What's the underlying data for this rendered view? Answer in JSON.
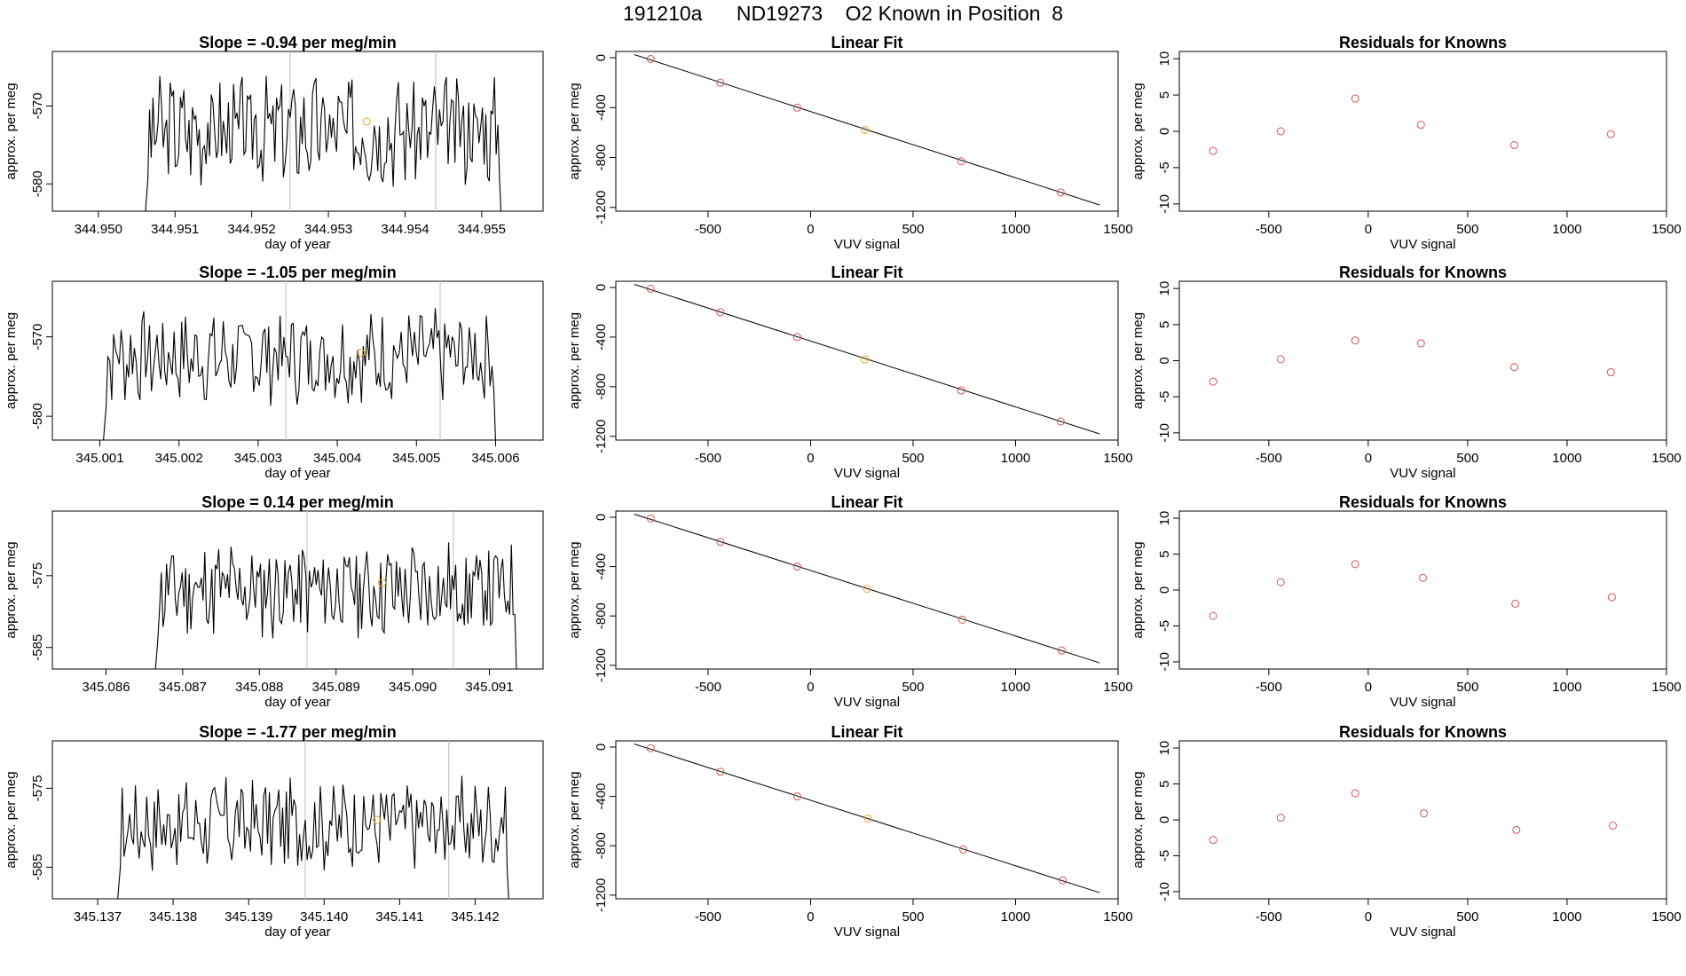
{
  "header": {
    "run_id": "191210a",
    "tank_id": "ND19273",
    "known_label": "O2 Known in Position",
    "position": "8"
  },
  "colors": {
    "line": "#000000",
    "known_point": "#d9534f",
    "highlight_point": "#f0a020",
    "vline": "#c8c8c8"
  },
  "chart_data": [
    {
      "type": "line",
      "panel": "time-series",
      "title": "Slope =  -0.94  per meg/min",
      "xlabel": "day of year",
      "ylabel": "approx. per meg",
      "xlim": [
        344.9494,
        344.9558
      ],
      "ylim": [
        -583.5,
        -563
      ],
      "xticks": [
        "344.950",
        "344.951",
        "344.952",
        "344.953",
        "344.954",
        "344.955"
      ],
      "xtick_values": [
        344.95,
        344.951,
        344.952,
        344.953,
        344.954,
        344.955
      ],
      "yticks": [
        "-570",
        "-580"
      ],
      "ytick_values": [
        -570,
        -580
      ],
      "vlines": [
        344.9525,
        344.9544
      ],
      "marker": {
        "x": 344.9535,
        "y": -572
      },
      "start": 344.9506,
      "end": 344.9553,
      "center": -573,
      "amp": 6,
      "seed": 3
    },
    {
      "type": "scatter",
      "panel": "linear-fit",
      "title": "Linear Fit",
      "xlabel": "VUV signal",
      "ylabel": "approx. per meg",
      "xlim": [
        -950,
        1500
      ],
      "ylim": [
        -1230,
        50
      ],
      "xticks": [
        "-500",
        "0",
        "500",
        "1000",
        "1500"
      ],
      "xtick_values": [
        -500,
        0,
        500,
        1000,
        1500
      ],
      "yticks": [
        "0",
        "-400",
        "-800",
        "-1200"
      ],
      "ytick_values": [
        0,
        -400,
        -800,
        -1200
      ],
      "fit_line": [
        [
          -860,
          25
        ],
        [
          1410,
          -1180
        ]
      ],
      "points": [
        {
          "x": -780,
          "y": -10
        },
        {
          "x": -440,
          "y": -200
        },
        {
          "x": -65,
          "y": -400
        },
        {
          "x": 265,
          "y": -580
        },
        {
          "x": 735,
          "y": -830
        },
        {
          "x": 1220,
          "y": -1080
        }
      ],
      "highlight_index": 3
    },
    {
      "type": "scatter",
      "panel": "residuals",
      "title": "Residuals for Knowns",
      "xlabel": "VUV signal",
      "ylabel": "approx. per meg",
      "xlim": [
        -950,
        1500
      ],
      "ylim": [
        -11,
        11
      ],
      "xticks": [
        "-500",
        "0",
        "500",
        "1000",
        "1500"
      ],
      "xtick_values": [
        -500,
        0,
        500,
        1000,
        1500
      ],
      "yticks": [
        "10",
        "5",
        "0",
        "-5",
        "-10"
      ],
      "ytick_values": [
        10,
        5,
        0,
        -5,
        -10
      ],
      "points": [
        {
          "x": -780,
          "y": -2.7
        },
        {
          "x": -440,
          "y": 0
        },
        {
          "x": -65,
          "y": 4.5
        },
        {
          "x": 265,
          "y": 0.9
        },
        {
          "x": 735,
          "y": -1.9
        },
        {
          "x": 1220,
          "y": -0.4
        }
      ]
    },
    {
      "type": "line",
      "panel": "time-series",
      "title": "Slope =  -1.05  per meg/min",
      "xlabel": "day of year",
      "ylabel": "approx. per meg",
      "xlim": [
        345.0004,
        345.0066
      ],
      "ylim": [
        -583,
        -563
      ],
      "xticks": [
        "345.001",
        "345.002",
        "345.003",
        "345.004",
        "345.005",
        "345.006"
      ],
      "xtick_values": [
        345.001,
        345.002,
        345.003,
        345.004,
        345.005,
        345.006
      ],
      "yticks": [
        "-570",
        "-580"
      ],
      "ytick_values": [
        -570,
        -580
      ],
      "vlines": [
        345.00335,
        345.0053
      ],
      "marker": {
        "x": 345.0043,
        "y": -572
      },
      "start": 345.00103,
      "end": 345.00605,
      "center": -572.5,
      "amp": 5,
      "seed": 7
    },
    {
      "type": "scatter",
      "panel": "linear-fit",
      "title": "Linear Fit",
      "xlabel": "VUV signal",
      "ylabel": "approx. per meg",
      "xlim": [
        -950,
        1500
      ],
      "ylim": [
        -1230,
        50
      ],
      "xticks": [
        "-500",
        "0",
        "500",
        "1000",
        "1500"
      ],
      "xtick_values": [
        -500,
        0,
        500,
        1000,
        1500
      ],
      "yticks": [
        "0",
        "-400",
        "-800",
        "-1200"
      ],
      "ytick_values": [
        0,
        -400,
        -800,
        -1200
      ],
      "fit_line": [
        [
          -860,
          25
        ],
        [
          1410,
          -1180
        ]
      ],
      "points": [
        {
          "x": -780,
          "y": -10
        },
        {
          "x": -440,
          "y": -200
        },
        {
          "x": -65,
          "y": -400
        },
        {
          "x": 265,
          "y": -580
        },
        {
          "x": 735,
          "y": -830
        },
        {
          "x": 1220,
          "y": -1080
        }
      ],
      "highlight_index": 3
    },
    {
      "type": "scatter",
      "panel": "residuals",
      "title": "Residuals for Knowns",
      "xlabel": "VUV signal",
      "ylabel": "approx. per meg",
      "xlim": [
        -950,
        1500
      ],
      "ylim": [
        -11,
        11
      ],
      "xticks": [
        "-500",
        "0",
        "500",
        "1000",
        "1500"
      ],
      "xtick_values": [
        -500,
        0,
        500,
        1000,
        1500
      ],
      "yticks": [
        "10",
        "5",
        "0",
        "-5",
        "-10"
      ],
      "ytick_values": [
        10,
        5,
        0,
        -5,
        -10
      ],
      "points": [
        {
          "x": -780,
          "y": -2.9
        },
        {
          "x": -440,
          "y": 0.2
        },
        {
          "x": -65,
          "y": 2.8
        },
        {
          "x": 265,
          "y": 2.4
        },
        {
          "x": 735,
          "y": -0.9
        },
        {
          "x": 1220,
          "y": -1.6
        }
      ]
    },
    {
      "type": "line",
      "panel": "time-series",
      "title": "Slope =  0.14  per meg/min",
      "xlabel": "day of year",
      "ylabel": "approx. per meg",
      "xlim": [
        345.0853,
        345.0917
      ],
      "ylim": [
        -588,
        -566
      ],
      "xticks": [
        "345.086",
        "345.087",
        "345.088",
        "345.089",
        "345.090",
        "345.091"
      ],
      "xtick_values": [
        345.086,
        345.087,
        345.088,
        345.089,
        345.09,
        345.091
      ],
      "yticks": [
        "-575",
        "-585"
      ],
      "ytick_values": [
        -575,
        -585
      ],
      "vlines": [
        345.08862,
        345.09053
      ],
      "marker": {
        "x": 345.0896,
        "y": -576
      },
      "start": 345.08663,
      "end": 345.0914,
      "center": -577,
      "amp": 6,
      "seed": 11
    },
    {
      "type": "scatter",
      "panel": "linear-fit",
      "title": "Linear Fit",
      "xlabel": "VUV signal",
      "ylabel": "approx. per meg",
      "xlim": [
        -950,
        1500
      ],
      "ylim": [
        -1230,
        50
      ],
      "xticks": [
        "-500",
        "0",
        "500",
        "1000",
        "1500"
      ],
      "xtick_values": [
        -500,
        0,
        500,
        1000,
        1500
      ],
      "yticks": [
        "0",
        "-400",
        "-800",
        "-1200"
      ],
      "ytick_values": [
        0,
        -400,
        -800,
        -1200
      ],
      "fit_line": [
        [
          -860,
          25
        ],
        [
          1410,
          -1180
        ]
      ],
      "points": [
        {
          "x": -780,
          "y": -10
        },
        {
          "x": -440,
          "y": -200
        },
        {
          "x": -65,
          "y": -400
        },
        {
          "x": 275,
          "y": -580
        },
        {
          "x": 740,
          "y": -830
        },
        {
          "x": 1225,
          "y": -1080
        }
      ],
      "highlight_index": 3
    },
    {
      "type": "scatter",
      "panel": "residuals",
      "title": "Residuals for Knowns",
      "xlabel": "VUV signal",
      "ylabel": "approx. per meg",
      "xlim": [
        -950,
        1500
      ],
      "ylim": [
        -11,
        11
      ],
      "xticks": [
        "-500",
        "0",
        "500",
        "1000",
        "1500"
      ],
      "xtick_values": [
        -500,
        0,
        500,
        1000,
        1500
      ],
      "yticks": [
        "10",
        "5",
        "0",
        "-5",
        "-10"
      ],
      "ytick_values": [
        10,
        5,
        0,
        -5,
        -10
      ],
      "points": [
        {
          "x": -780,
          "y": -3.6
        },
        {
          "x": -440,
          "y": 1.1
        },
        {
          "x": -65,
          "y": 3.6
        },
        {
          "x": 275,
          "y": 1.7
        },
        {
          "x": 740,
          "y": -1.9
        },
        {
          "x": 1225,
          "y": -1.0
        }
      ]
    },
    {
      "type": "line",
      "panel": "time-series",
      "title": "Slope =  -1.77  per meg/min",
      "xlabel": "day of year",
      "ylabel": "approx. per meg",
      "xlim": [
        345.1364,
        345.1429
      ],
      "ylim": [
        -589,
        -569
      ],
      "xticks": [
        "345.137",
        "345.138",
        "345.139",
        "345.140",
        "345.141",
        "345.142"
      ],
      "xtick_values": [
        345.137,
        345.138,
        345.139,
        345.14,
        345.141,
        345.142
      ],
      "yticks": [
        "-575",
        "-585"
      ],
      "ytick_values": [
        -575,
        -585
      ],
      "vlines": [
        345.13975,
        345.14165
      ],
      "marker": {
        "x": 345.1407,
        "y": -579
      },
      "start": 345.13725,
      "end": 345.1425,
      "center": -579.5,
      "amp": 5,
      "seed": 17
    },
    {
      "type": "scatter",
      "panel": "linear-fit",
      "title": "Linear Fit",
      "xlabel": "VUV signal",
      "ylabel": "approx. per meg",
      "xlim": [
        -950,
        1500
      ],
      "ylim": [
        -1230,
        50
      ],
      "xticks": [
        "-500",
        "0",
        "500",
        "1000",
        "1500"
      ],
      "xtick_values": [
        -500,
        0,
        500,
        1000,
        1500
      ],
      "yticks": [
        "0",
        "-400",
        "-800",
        "-1200"
      ],
      "ytick_values": [
        0,
        -400,
        -800,
        -1200
      ],
      "fit_line": [
        [
          -860,
          25
        ],
        [
          1410,
          -1180
        ]
      ],
      "points": [
        {
          "x": -780,
          "y": -10
        },
        {
          "x": -440,
          "y": -200
        },
        {
          "x": -65,
          "y": -400
        },
        {
          "x": 280,
          "y": -580
        },
        {
          "x": 745,
          "y": -830
        },
        {
          "x": 1230,
          "y": -1080
        }
      ],
      "highlight_index": 3
    },
    {
      "type": "scatter",
      "panel": "residuals",
      "title": "Residuals for Knowns",
      "xlabel": "VUV signal",
      "ylabel": "approx. per meg",
      "xlim": [
        -950,
        1500
      ],
      "ylim": [
        -11,
        11
      ],
      "xticks": [
        "-500",
        "0",
        "500",
        "1000",
        "1500"
      ],
      "xtick_values": [
        -500,
        0,
        500,
        1000,
        1500
      ],
      "yticks": [
        "10",
        "5",
        "0",
        "-5",
        "-10"
      ],
      "ytick_values": [
        10,
        5,
        0,
        -5,
        -10
      ],
      "points": [
        {
          "x": -780,
          "y": -2.8
        },
        {
          "x": -440,
          "y": 0.3
        },
        {
          "x": -65,
          "y": 3.7
        },
        {
          "x": 280,
          "y": 0.9
        },
        {
          "x": 745,
          "y": -1.4
        },
        {
          "x": 1230,
          "y": -0.8
        }
      ]
    }
  ]
}
